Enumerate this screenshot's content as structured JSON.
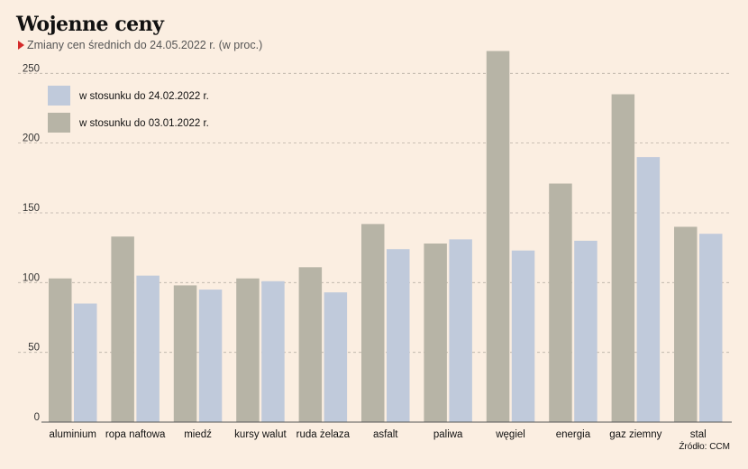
{
  "header": {
    "title": "Wojenne ceny",
    "subtitle": "Zmiany cen średnich do 24.05.2022 r. (w proc.)"
  },
  "source": "Źródło: CCM",
  "colors": {
    "background": "#fbeee1",
    "series_0301": "#b7b4a6",
    "series_2402": "#c0cadb",
    "accent": "#d42a2a",
    "grid": "#b9b0a6"
  },
  "chart_data": {
    "type": "bar",
    "title": "Wojenne ceny",
    "subtitle": "Zmiany cen średnich do 24.05.2022 r. (w proc.)",
    "xlabel": "",
    "ylabel": "",
    "ylim": [
      0,
      270
    ],
    "yticks": [
      0,
      50,
      100,
      150,
      200,
      250
    ],
    "grid": true,
    "legend": "top-left",
    "categories": [
      "aluminium",
      "ropa naftowa",
      "miedź",
      "kursy walut",
      "ruda żelaza",
      "asfalt",
      "paliwa",
      "węgiel",
      "energia",
      "gaz ziemny",
      "stal"
    ],
    "series": [
      {
        "name": "w stosunku do 03.01.2022 r.",
        "values": [
          103,
          133,
          98,
          103,
          111,
          142,
          128,
          266,
          171,
          235,
          140
        ]
      },
      {
        "name": "w stosunku do 24.02.2022 r.",
        "values": [
          85,
          105,
          95,
          101,
          93,
          124,
          131,
          123,
          130,
          190,
          135
        ]
      }
    ]
  }
}
